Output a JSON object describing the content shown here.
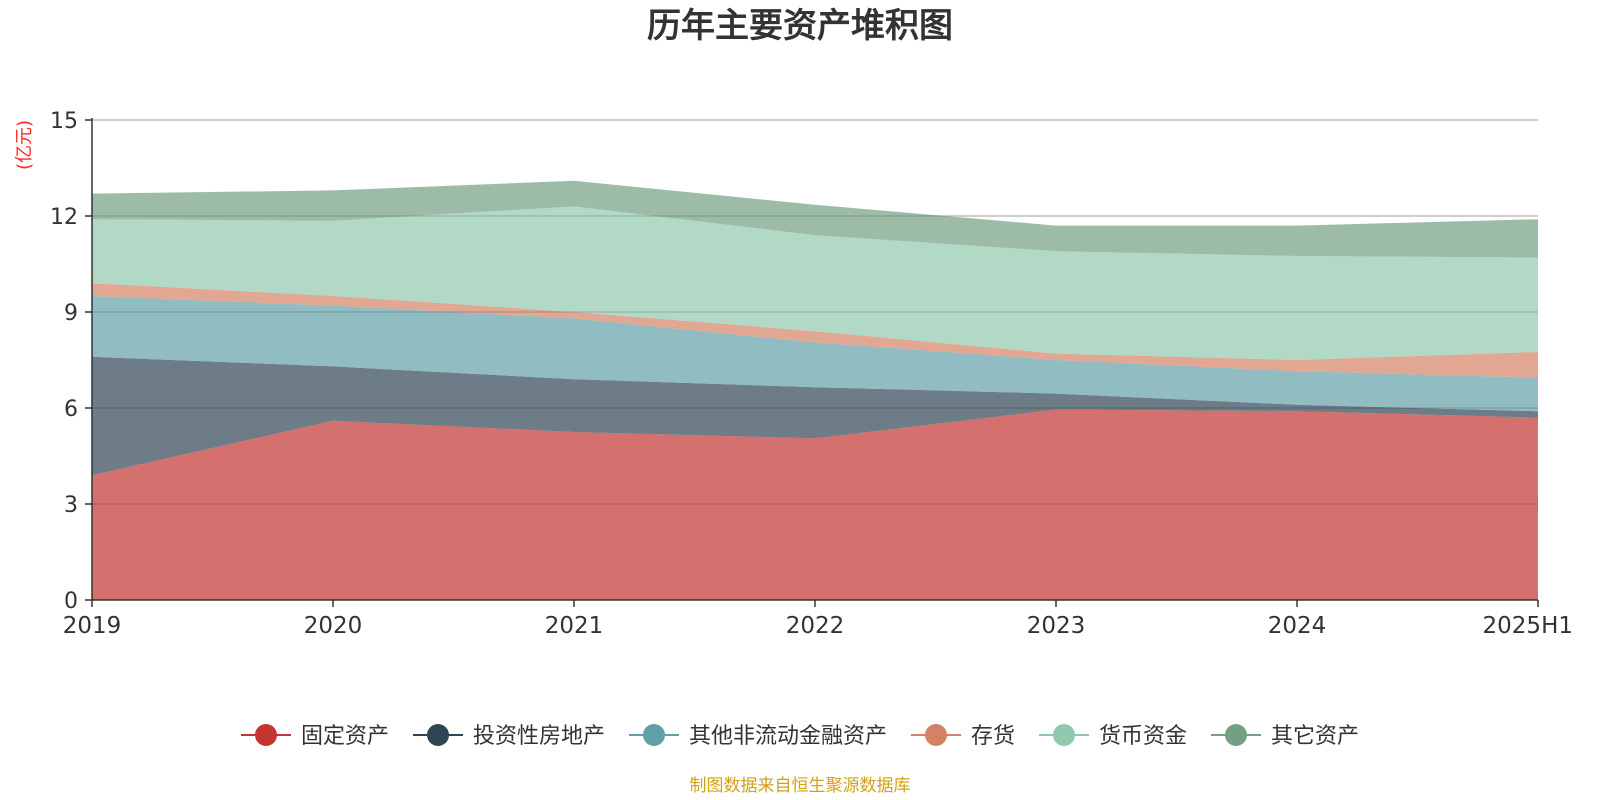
{
  "chart_data": {
    "type": "area",
    "stacked": true,
    "title": "历年主要资产堆积图",
    "ylabel": "(亿元)",
    "xlabel": "",
    "categories": [
      "2019",
      "2020",
      "2021",
      "2022",
      "2023",
      "2024",
      "2025H1"
    ],
    "ylim": [
      0,
      15
    ],
    "yticks": [
      "0",
      "3",
      "6",
      "9",
      "12",
      "15"
    ],
    "grid": true,
    "legend_position": "bottom",
    "series": [
      {
        "name": "固定资产",
        "color": "#c23531",
        "values": [
          3.9,
          5.6,
          5.25,
          5.05,
          5.95,
          5.9,
          5.7
        ]
      },
      {
        "name": "投资性房地产",
        "color": "#2f4554",
        "values": [
          3.7,
          1.7,
          1.65,
          1.6,
          0.5,
          0.2,
          0.2
        ]
      },
      {
        "name": "其他非流动金融资产",
        "color": "#61a0a8",
        "values": [
          1.9,
          1.9,
          1.9,
          1.4,
          1.05,
          1.05,
          1.05
        ]
      },
      {
        "name": "存货",
        "color": "#d48265",
        "values": [
          0.4,
          0.3,
          0.2,
          0.35,
          0.2,
          0.35,
          0.8
        ]
      },
      {
        "name": "货币资金",
        "color": "#91c7ae",
        "values": [
          2.0,
          2.35,
          3.3,
          3.0,
          3.2,
          3.25,
          2.95
        ]
      },
      {
        "name": "其它资产",
        "color": "#749f83",
        "values": [
          0.8,
          0.95,
          0.8,
          0.95,
          0.8,
          0.95,
          1.2
        ]
      }
    ]
  },
  "source_note": "制图数据来自恒生聚源数据库"
}
